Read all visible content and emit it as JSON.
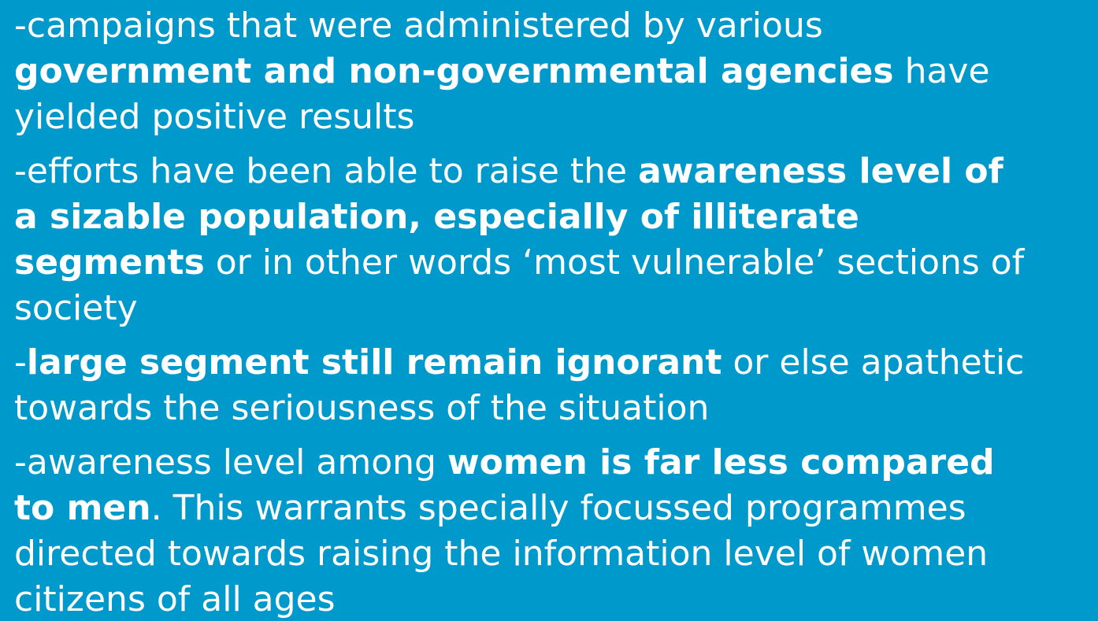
{
  "paragraphs": [
    {
      "lines": [
        [
          {
            "text": "-campaigns that were administered by various",
            "bold": false
          }
        ],
        [
          {
            "text": "government and non-governmental agencies",
            "bold": true
          },
          {
            "text": " have",
            "bold": false
          }
        ],
        [
          {
            "text": "yielded positive results",
            "bold": false
          }
        ]
      ]
    },
    {
      "lines": [
        [
          {
            "text": "-efforts have been able to raise the ",
            "bold": false
          },
          {
            "text": "awareness level of",
            "bold": true
          }
        ],
        [
          {
            "text": "a sizable population, especially of illiterate",
            "bold": true
          }
        ],
        [
          {
            "text": "segments",
            "bold": true
          },
          {
            "text": " or in other words ‘most vulnerable’ sections of",
            "bold": false
          }
        ],
        [
          {
            "text": "society",
            "bold": false
          }
        ]
      ]
    },
    {
      "lines": [
        [
          {
            "text": "-",
            "bold": false
          },
          {
            "text": "large segment still remain ignorant",
            "bold": true
          },
          {
            "text": " or else apathetic",
            "bold": false
          }
        ],
        [
          {
            "text": "towards the seriousness of the situation",
            "bold": false
          }
        ]
      ]
    },
    {
      "lines": [
        [
          {
            "text": "-awareness level among ",
            "bold": false
          },
          {
            "text": "women is far less compared",
            "bold": true
          }
        ],
        [
          {
            "text": "to men",
            "bold": true
          },
          {
            "text": ". This warrants specially focussed programmes",
            "bold": false
          }
        ],
        [
          {
            "text": "directed towards raising the information level of women",
            "bold": false
          }
        ],
        [
          {
            "text": "citizens of all ages",
            "bold": false
          }
        ]
      ]
    }
  ]
}
